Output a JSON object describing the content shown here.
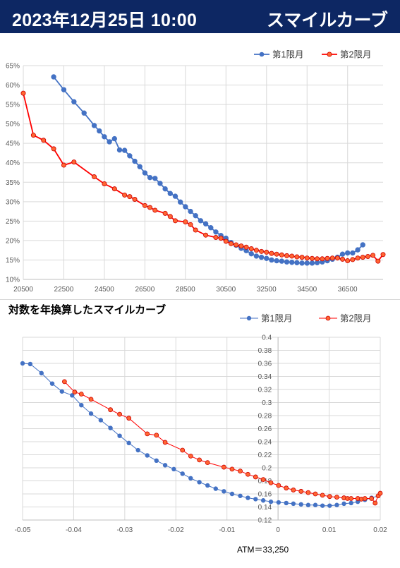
{
  "header": {
    "date": "2023年12月25日 10:00",
    "title": "スマイルカーブ"
  },
  "chart_data": [
    {
      "type": "line",
      "title": "",
      "xlabel": "",
      "ylabel": "",
      "x_ticks": [
        "20500",
        "22500",
        "24500",
        "26500",
        "28500",
        "30500",
        "32500",
        "34500",
        "36500"
      ],
      "xlim": [
        20500,
        38250
      ],
      "y_ticks": [
        "10%",
        "15%",
        "20%",
        "25%",
        "30%",
        "35%",
        "40%",
        "45%",
        "50%",
        "55%",
        "60%",
        "65%"
      ],
      "ylim": [
        0.1,
        0.65
      ],
      "grid": true,
      "legend": "top-right",
      "series": [
        {
          "name": "第1限月",
          "color": "#4472c4",
          "x": [
            22000,
            22500,
            23000,
            23500,
            24000,
            24250,
            24500,
            24750,
            25000,
            25250,
            25500,
            25750,
            26000,
            26250,
            26500,
            26750,
            27000,
            27250,
            27500,
            27750,
            28000,
            28250,
            28500,
            28750,
            29000,
            29250,
            29500,
            29750,
            30000,
            30250,
            30500,
            30750,
            31000,
            31250,
            31500,
            31750,
            32000,
            32250,
            32500,
            32750,
            33000,
            33250,
            33500,
            33750,
            34000,
            34250,
            34500,
            34750,
            35000,
            35250,
            35500,
            35750,
            36000,
            36250,
            36500,
            36750,
            37000,
            37250
          ],
          "y": [
            0.621,
            0.588,
            0.557,
            0.528,
            0.496,
            0.482,
            0.467,
            0.454,
            0.462,
            0.433,
            0.432,
            0.418,
            0.404,
            0.39,
            0.374,
            0.362,
            0.36,
            0.347,
            0.333,
            0.321,
            0.314,
            0.299,
            0.287,
            0.275,
            0.264,
            0.251,
            0.243,
            0.233,
            0.222,
            0.213,
            0.206,
            0.195,
            0.188,
            0.18,
            0.174,
            0.166,
            0.16,
            0.157,
            0.154,
            0.15,
            0.148,
            0.147,
            0.145,
            0.144,
            0.143,
            0.142,
            0.142,
            0.142,
            0.143,
            0.145,
            0.148,
            0.152,
            0.157,
            0.165,
            0.168,
            0.168,
            0.176,
            0.189
          ]
        },
        {
          "name": "第2限月",
          "color": "#ff0000",
          "x": [
            20500,
            21000,
            21500,
            22000,
            22500,
            23000,
            24000,
            24500,
            25000,
            25500,
            25750,
            26000,
            26500,
            26750,
            27000,
            27500,
            27750,
            28000,
            28500,
            28750,
            29000,
            29500,
            30000,
            30250,
            30500,
            30750,
            31000,
            31250,
            31500,
            31750,
            32000,
            32250,
            32500,
            32750,
            33000,
            33250,
            33500,
            33750,
            34000,
            34250,
            34500,
            34750,
            35000,
            35250,
            35500,
            35750,
            36000,
            36250,
            36500,
            36750,
            37000,
            37250,
            37500,
            37750,
            38000,
            38250
          ],
          "y": [
            0.579,
            0.471,
            0.458,
            0.436,
            0.394,
            0.402,
            0.364,
            0.346,
            0.333,
            0.317,
            0.313,
            0.306,
            0.29,
            0.285,
            0.278,
            0.27,
            0.262,
            0.251,
            0.248,
            0.241,
            0.227,
            0.214,
            0.208,
            0.206,
            0.198,
            0.192,
            0.189,
            0.186,
            0.183,
            0.179,
            0.175,
            0.172,
            0.17,
            0.167,
            0.165,
            0.163,
            0.161,
            0.16,
            0.158,
            0.157,
            0.155,
            0.154,
            0.153,
            0.153,
            0.154,
            0.155,
            0.155,
            0.152,
            0.148,
            0.151,
            0.155,
            0.157,
            0.159,
            0.162,
            0.147,
            0.164
          ]
        }
      ]
    },
    {
      "type": "line",
      "title": "対数を年換算したスマイルカーブ",
      "xlabel": "",
      "ylabel": "",
      "annotation": "ATM＝33,250",
      "x_ticks": [
        "-0.05",
        "-0.04",
        "-0.03",
        "-0.02",
        "-0.01",
        "0",
        "0.01",
        "0.02"
      ],
      "xlim": [
        -0.05,
        0.02
      ],
      "y_ticks": [
        "0.12",
        "0.14",
        "0.16",
        "0.18",
        "0.2",
        "0.22",
        "0.24",
        "0.26",
        "0.28",
        "0.3",
        "0.32",
        "0.34",
        "0.36",
        "0.38",
        "0.4"
      ],
      "ylim": [
        0.12,
        0.4
      ],
      "grid": true,
      "legend": "top-right",
      "series": [
        {
          "name": "第1限月",
          "color": "#4472c4",
          "x": [
            -0.05,
            -0.0485,
            -0.0463,
            -0.0442,
            -0.0423,
            -0.0403,
            -0.0385,
            -0.0366,
            -0.0347,
            -0.0328,
            -0.031,
            -0.0292,
            -0.0274,
            -0.0256,
            -0.0238,
            -0.0221,
            -0.0204,
            -0.0187,
            -0.0171,
            -0.0154,
            -0.0138,
            -0.0122,
            -0.0106,
            -0.009,
            -0.0074,
            -0.0059,
            -0.0044,
            -0.0029,
            -0.0014,
            0.0001,
            0.0016,
            0.003,
            0.0045,
            0.0059,
            0.0073,
            0.0087,
            0.0101,
            0.0115,
            0.0129,
            0.0143,
            0.0156,
            0.017,
            0.0183,
            0.0196
          ],
          "y": [
            0.36,
            0.359,
            0.345,
            0.329,
            0.317,
            0.311,
            0.296,
            0.283,
            0.273,
            0.261,
            0.249,
            0.238,
            0.227,
            0.219,
            0.211,
            0.204,
            0.198,
            0.191,
            0.184,
            0.178,
            0.173,
            0.168,
            0.164,
            0.16,
            0.157,
            0.154,
            0.152,
            0.15,
            0.148,
            0.147,
            0.146,
            0.145,
            0.144,
            0.143,
            0.143,
            0.142,
            0.142,
            0.143,
            0.145,
            0.146,
            0.148,
            0.151,
            0.154,
            0.157
          ]
        },
        {
          "name": "第2限月",
          "color": "#ff0000",
          "x": [
            -0.0418,
            -0.0398,
            -0.0385,
            -0.0366,
            -0.0328,
            -0.031,
            -0.0292,
            -0.0256,
            -0.0238,
            -0.0221,
            -0.0187,
            -0.0171,
            -0.0154,
            -0.0138,
            -0.0106,
            -0.009,
            -0.0074,
            -0.0059,
            -0.0044,
            -0.0029,
            -0.0014,
            0.0001,
            0.0016,
            0.003,
            0.0045,
            0.0059,
            0.0073,
            0.0087,
            0.0101,
            0.0115,
            0.0129,
            0.0136,
            0.0143,
            0.0156,
            0.0163,
            0.017,
            0.0183,
            0.019,
            0.0196,
            0.02
          ],
          "y": [
            0.332,
            0.316,
            0.313,
            0.305,
            0.289,
            0.282,
            0.276,
            0.252,
            0.25,
            0.239,
            0.227,
            0.218,
            0.212,
            0.208,
            0.201,
            0.198,
            0.195,
            0.19,
            0.186,
            0.182,
            0.177,
            0.173,
            0.169,
            0.166,
            0.164,
            0.162,
            0.16,
            0.158,
            0.156,
            0.155,
            0.154,
            0.153,
            0.153,
            0.153,
            0.152,
            0.153,
            0.153,
            0.146,
            0.157,
            0.161
          ]
        }
      ]
    }
  ]
}
